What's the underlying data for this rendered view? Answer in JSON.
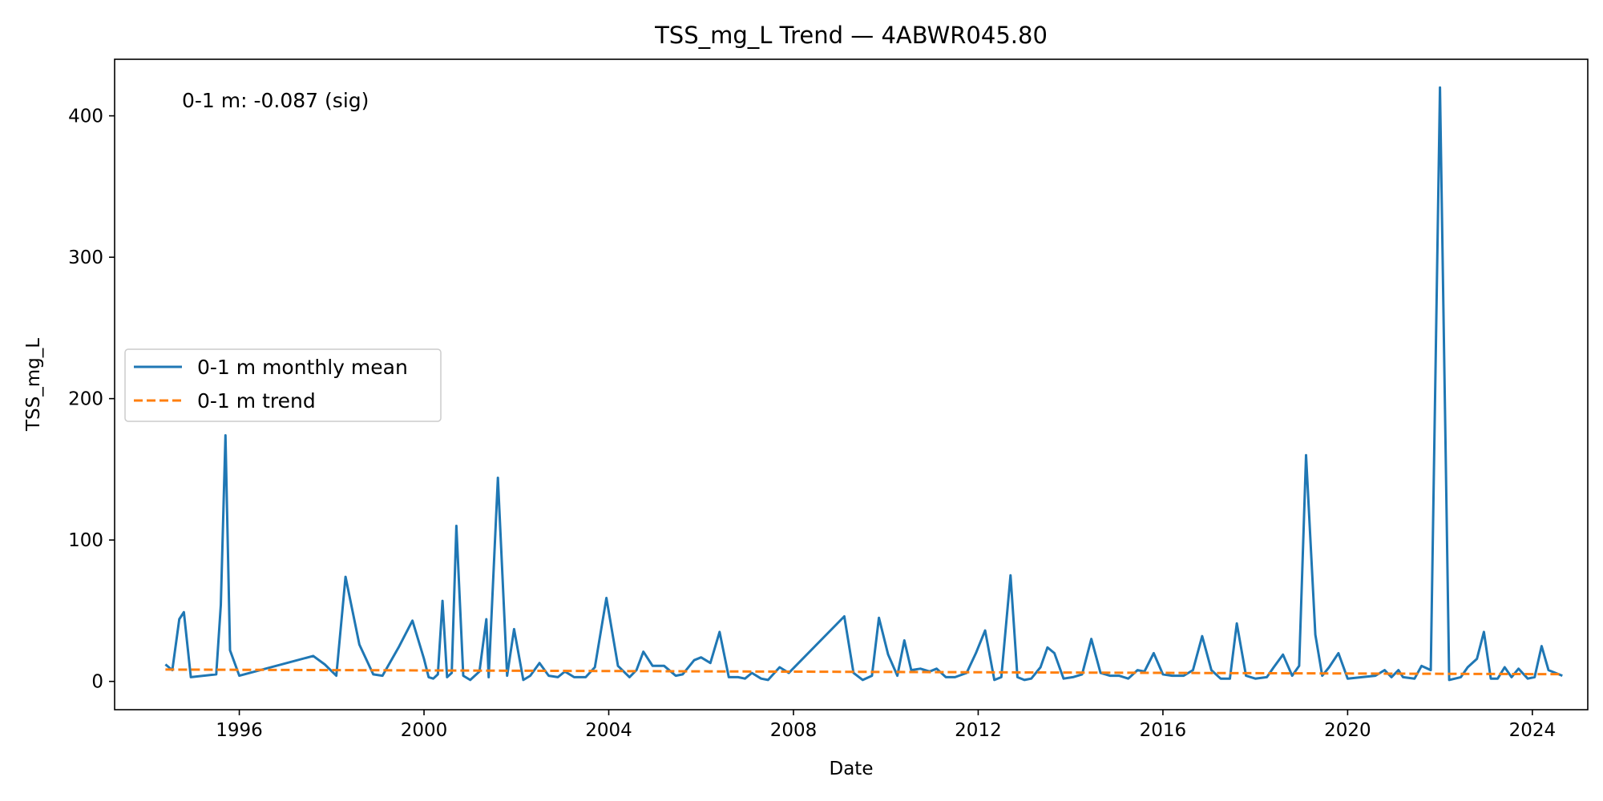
{
  "chart_data": {
    "type": "line",
    "title": "TSS_mg_L Trend — 4ABWR045.80",
    "xlabel": "Date",
    "ylabel": "TSS_mg_L",
    "xlim": [
      1993.3,
      2025.2
    ],
    "ylim": [
      -20,
      440
    ],
    "x_ticks": [
      1996,
      2000,
      2004,
      2008,
      2012,
      2016,
      2020,
      2024
    ],
    "y_ticks": [
      0,
      100,
      200,
      300,
      400
    ],
    "grid": false,
    "legend_position": "center-left",
    "annotation": "0-1 m: -0.087 (sig)",
    "colors": {
      "monthly_mean": "#1f77b4",
      "trend": "#ff7f0e"
    },
    "series": [
      {
        "name": "0-1 m monthly mean",
        "style": "solid",
        "x": [
          1994.4,
          1994.55,
          1994.7,
          1994.8,
          1994.95,
          1995.5,
          1995.6,
          1995.7,
          1995.8,
          1996.0,
          1997.6,
          1997.85,
          1998.1,
          1998.3,
          1998.6,
          1998.9,
          1999.1,
          1999.45,
          1999.75,
          2000.0,
          2000.1,
          2000.2,
          2000.3,
          2000.4,
          2000.5,
          2000.6,
          2000.7,
          2000.85,
          2001.0,
          2001.2,
          2001.35,
          2001.4,
          2001.6,
          2001.8,
          2001.95,
          2002.15,
          2002.3,
          2002.5,
          2002.7,
          2002.9,
          2003.05,
          2003.25,
          2003.5,
          2003.7,
          2003.95,
          2004.2,
          2004.45,
          2004.6,
          2004.75,
          2004.95,
          2005.2,
          2005.45,
          2005.6,
          2005.85,
          2006.0,
          2006.2,
          2006.4,
          2006.6,
          2006.8,
          2006.95,
          2007.1,
          2007.3,
          2007.45,
          2007.7,
          2007.9,
          2009.1,
          2009.3,
          2009.5,
          2009.7,
          2009.85,
          2010.05,
          2010.25,
          2010.4,
          2010.55,
          2010.75,
          2010.95,
          2011.1,
          2011.3,
          2011.5,
          2011.75,
          2011.95,
          2012.15,
          2012.35,
          2012.5,
          2012.7,
          2012.85,
          2013.0,
          2013.15,
          2013.35,
          2013.5,
          2013.65,
          2013.85,
          2014.05,
          2014.25,
          2014.45,
          2014.65,
          2014.85,
          2015.05,
          2015.25,
          2015.45,
          2015.6,
          2015.8,
          2016.0,
          2016.2,
          2016.45,
          2016.65,
          2016.85,
          2017.05,
          2017.25,
          2017.45,
          2017.6,
          2017.8,
          2018.0,
          2018.25,
          2018.4,
          2018.6,
          2018.8,
          2018.95,
          2019.1,
          2019.3,
          2019.45,
          2019.6,
          2019.8,
          2020.0,
          2020.6,
          2020.8,
          2020.95,
          2021.1,
          2021.2,
          2021.45,
          2021.6,
          2021.8,
          2022.0,
          2022.2,
          2022.45,
          2022.6,
          2022.8,
          2022.95,
          2023.1,
          2023.25,
          2023.4,
          2023.55,
          2023.7,
          2023.9,
          2024.05,
          2024.2,
          2024.35,
          2024.5,
          2024.65
        ],
        "y": [
          12,
          8,
          44,
          49,
          3,
          5,
          54,
          174,
          22,
          4,
          18,
          12,
          4,
          74,
          26,
          5,
          4,
          24,
          43,
          16,
          3,
          2,
          5,
          57,
          3,
          6,
          110,
          4,
          1,
          7,
          44,
          3,
          144,
          4,
          37,
          1,
          4,
          13,
          4,
          3,
          7,
          3,
          3,
          10,
          59,
          11,
          3,
          8,
          21,
          11,
          11,
          4,
          5,
          15,
          17,
          13,
          35,
          3,
          3,
          2,
          6,
          2,
          1,
          10,
          6,
          46,
          6,
          1,
          4,
          45,
          19,
          4,
          29,
          8,
          9,
          7,
          9,
          3,
          3,
          6,
          20,
          36,
          1,
          3,
          75,
          3,
          1,
          2,
          10,
          24,
          20,
          2,
          3,
          5,
          30,
          6,
          4,
          4,
          2,
          8,
          7,
          20,
          5,
          4,
          4,
          8,
          32,
          8,
          2,
          2,
          41,
          4,
          2,
          3,
          10,
          19,
          4,
          11,
          160,
          33,
          4,
          10,
          20,
          2,
          4,
          8,
          3,
          8,
          3,
          2,
          11,
          8,
          420,
          1,
          3,
          10,
          16,
          35,
          2,
          2,
          10,
          3,
          9,
          2,
          3,
          25,
          8,
          6,
          4
        ],
        "y_note_last": 4
      },
      {
        "name": "0-1 m trend",
        "style": "dashed",
        "x": [
          1994.4,
          2024.65
        ],
        "y": [
          8.4,
          5.1
        ]
      }
    ]
  }
}
